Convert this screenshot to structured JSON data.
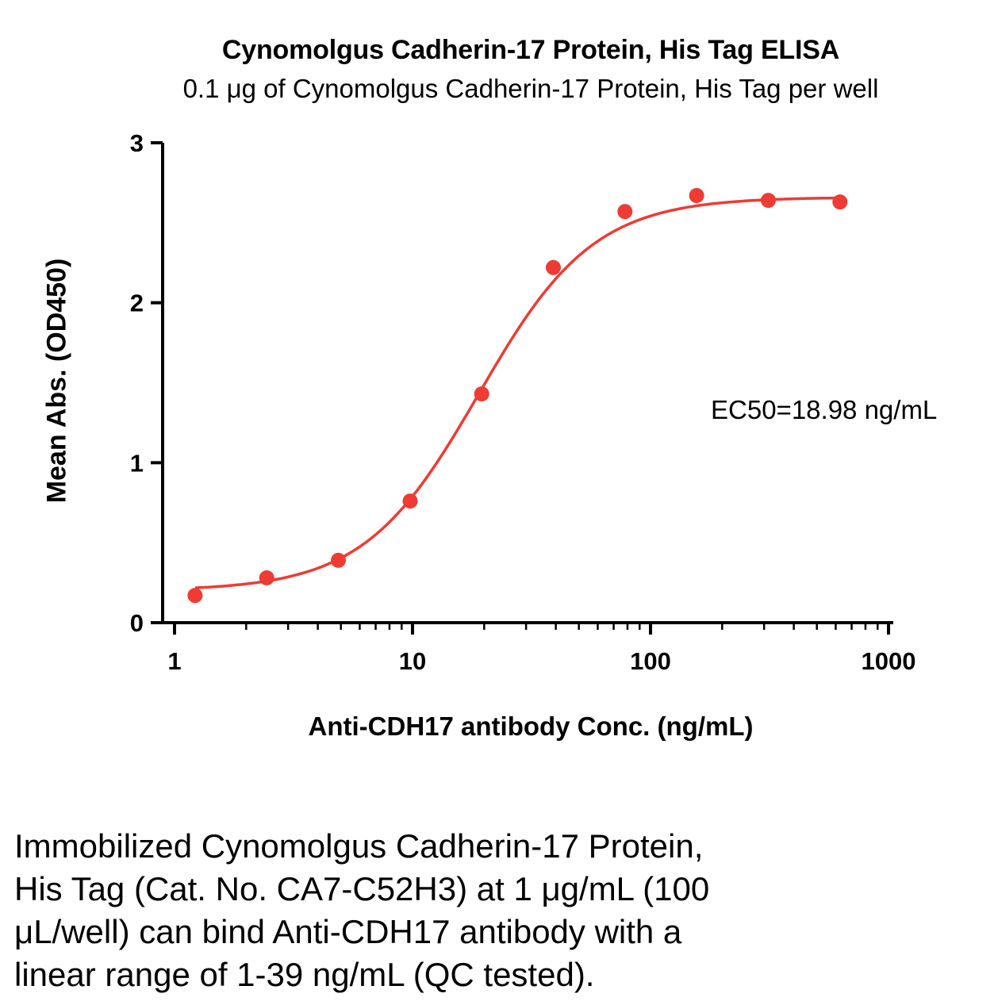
{
  "chart_data": {
    "type": "scatter",
    "title": "Cynomolgus Cadherin-17 Protein, His Tag ELISA",
    "subtitle": "0.1 μg of Cynomolgus Cadherin-17 Protein, His Tag per well",
    "xlabel": "Anti-CDH17 antibody Conc. (ng/mL)",
    "ylabel": "Mean Abs. (OD450)",
    "x_scale": "log10",
    "xlim": [
      1,
      1000
    ],
    "ylim": [
      0,
      3
    ],
    "xticks": [
      1,
      10,
      100,
      1000
    ],
    "yticks": [
      0,
      1,
      2,
      3
    ],
    "grid": false,
    "legend": "none",
    "annotation": "EC50=18.98 ng/mL",
    "accent_color": "#ee3b33",
    "series": [
      {
        "name": "Anti-CDH17 antibody",
        "color": "#ee3b33",
        "points": [
          {
            "x": 1.22,
            "y": 0.17
          },
          {
            "x": 2.44,
            "y": 0.28
          },
          {
            "x": 4.88,
            "y": 0.39
          },
          {
            "x": 9.77,
            "y": 0.76
          },
          {
            "x": 19.53,
            "y": 1.43
          },
          {
            "x": 39.06,
            "y": 2.22
          },
          {
            "x": 78.13,
            "y": 2.57
          },
          {
            "x": 156.25,
            "y": 2.67
          },
          {
            "x": 312.5,
            "y": 2.64
          },
          {
            "x": 625,
            "y": 2.63
          }
        ]
      }
    ],
    "fit": {
      "model": "4PL",
      "bottom": 0.2,
      "top": 2.66,
      "ec50": 18.98,
      "hill": 1.8
    }
  },
  "caption": "Immobilized Cynomolgus Cadherin-17 Protein,\nHis Tag (Cat. No. CA7-C52H3) at 1 μg/mL (100\nμL/well) can bind Anti-CDH17 antibody with a\nlinear range of 1-39 ng/mL (QC tested)."
}
